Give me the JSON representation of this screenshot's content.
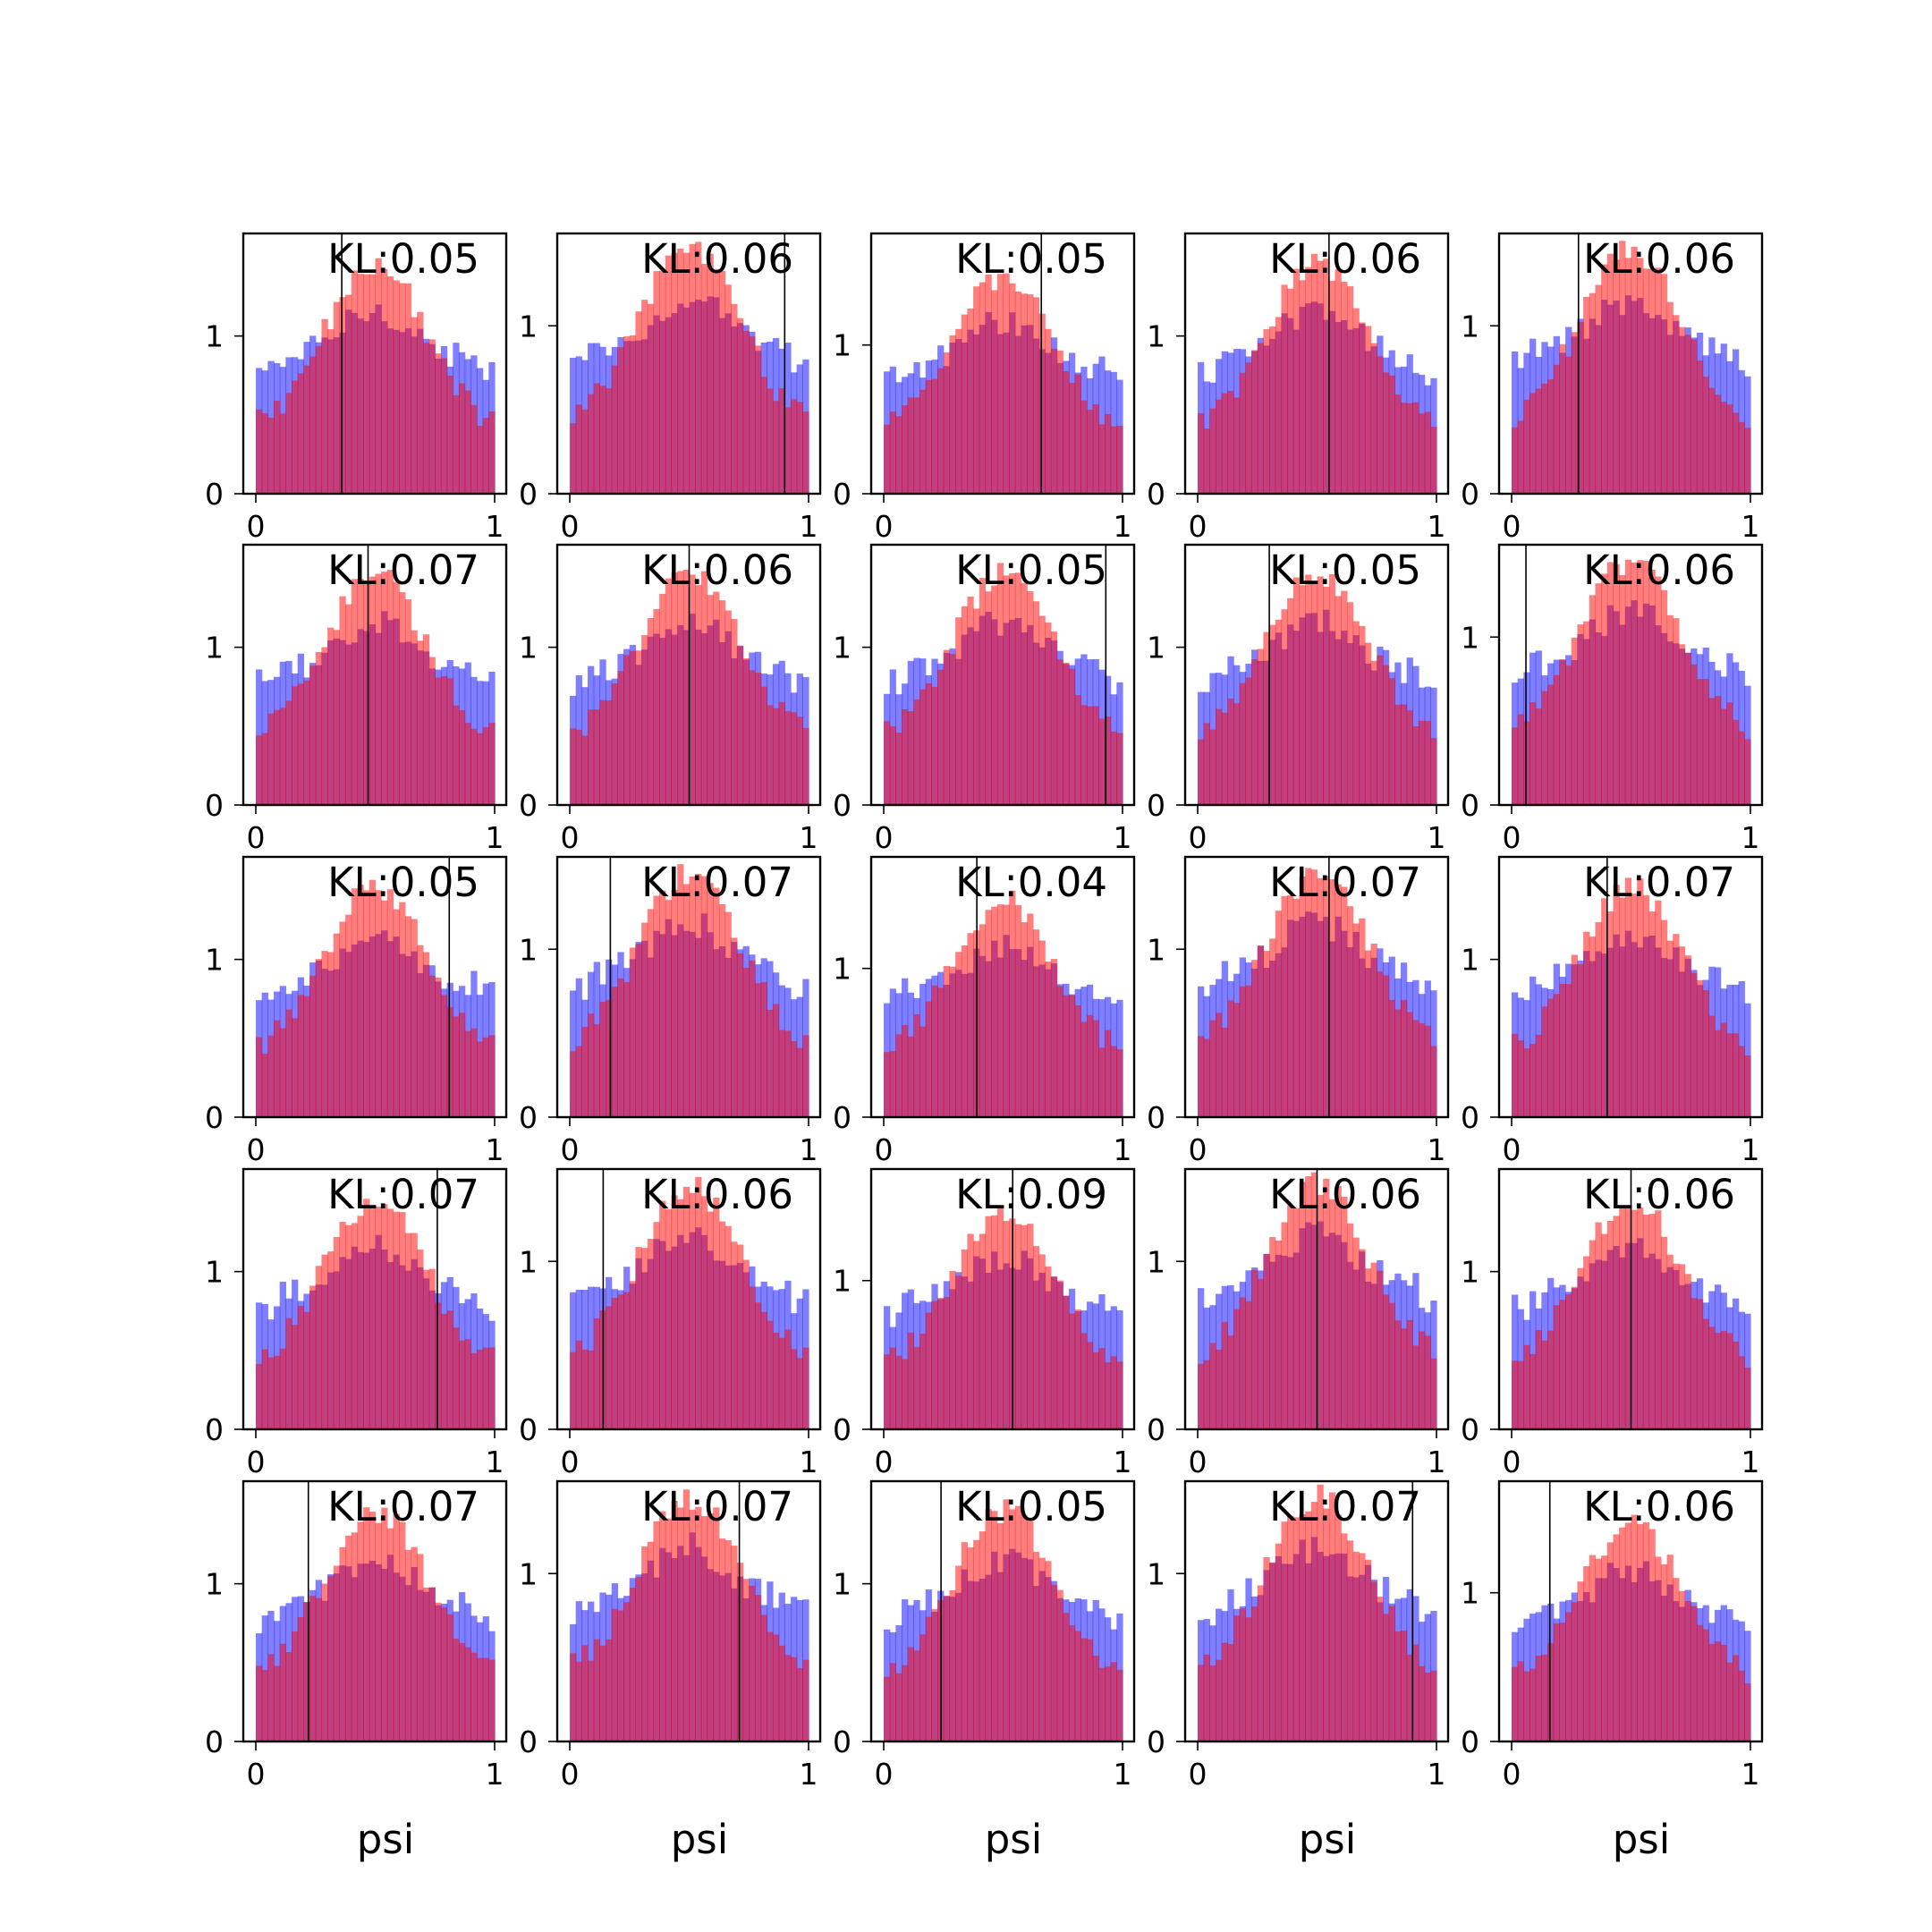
{
  "chart_data": {
    "type": "histogram-grid",
    "rows": 5,
    "cols": 5,
    "xlabel": "psi",
    "xlim": [
      0,
      1
    ],
    "ylim": [
      0,
      1.6
    ],
    "xticks": [
      0,
      1
    ],
    "yticks": [
      0,
      1
    ],
    "series": [
      {
        "name": "",
        "color": "#0000ff",
        "alpha": 0.5
      },
      {
        "name": "",
        "color": "#ff0000",
        "alpha": 0.5
      }
    ],
    "panels": [
      {
        "kl": "KL:0.05",
        "vline": 0.36,
        "ymax": 1.65
      },
      {
        "kl": "KL:0.06",
        "vline": 0.9,
        "ymax": 1.55
      },
      {
        "kl": "KL:0.05",
        "vline": 0.66,
        "ymax": 1.75
      },
      {
        "kl": "KL:0.06",
        "vline": 0.55,
        "ymax": 1.65
      },
      {
        "kl": "KL:0.06",
        "vline": 0.28,
        "ymax": 1.55
      },
      {
        "kl": "KL:0.07",
        "vline": 0.47,
        "ymax": 1.65
      },
      {
        "kl": "KL:0.06",
        "vline": 0.5,
        "ymax": 1.65
      },
      {
        "kl": "KL:0.05",
        "vline": 0.93,
        "ymax": 1.65
      },
      {
        "kl": "KL:0.05",
        "vline": 0.3,
        "ymax": 1.65
      },
      {
        "kl": "KL:0.06",
        "vline": 0.06,
        "ymax": 1.55
      },
      {
        "kl": "KL:0.05",
        "vline": 0.81,
        "ymax": 1.65
      },
      {
        "kl": "KL:0.07",
        "vline": 0.17,
        "ymax": 1.55
      },
      {
        "kl": "KL:0.04",
        "vline": 0.39,
        "ymax": 1.75
      },
      {
        "kl": "KL:0.07",
        "vline": 0.55,
        "ymax": 1.55
      },
      {
        "kl": "KL:0.07",
        "vline": 0.4,
        "ymax": 1.65
      },
      {
        "kl": "KL:0.07",
        "vline": 0.76,
        "ymax": 1.65
      },
      {
        "kl": "KL:0.06",
        "vline": 0.14,
        "ymax": 1.55
      },
      {
        "kl": "KL:0.09",
        "vline": 0.54,
        "ymax": 1.75
      },
      {
        "kl": "KL:0.06",
        "vline": 0.5,
        "ymax": 1.55
      },
      {
        "kl": "KL:0.06",
        "vline": 0.5,
        "ymax": 1.65
      },
      {
        "kl": "KL:0.07",
        "vline": 0.22,
        "ymax": 1.65
      },
      {
        "kl": "KL:0.07",
        "vline": 0.71,
        "ymax": 1.55
      },
      {
        "kl": "KL:0.05",
        "vline": 0.24,
        "ymax": 1.65
      },
      {
        "kl": "KL:0.07",
        "vline": 0.9,
        "ymax": 1.55
      },
      {
        "kl": "KL:0.06",
        "vline": 0.16,
        "ymax": 1.75
      }
    ]
  }
}
